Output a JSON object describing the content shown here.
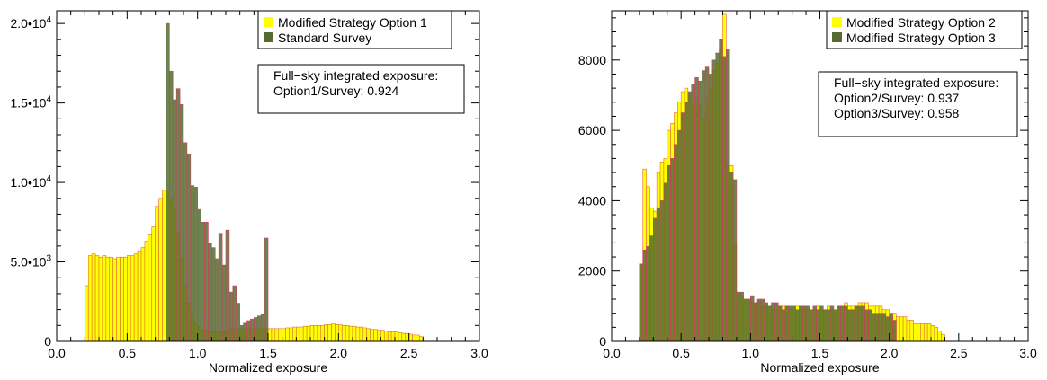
{
  "chart_data": [
    {
      "type": "bar",
      "xlabel": "Normalized exposure",
      "ylabel": "",
      "xlim": [
        0.0,
        3.0
      ],
      "ylim": [
        0,
        20800
      ],
      "bin_width": 0.025,
      "x_ticks": [
        0.0,
        0.5,
        1.0,
        1.5,
        2.0,
        2.5,
        3.0
      ],
      "x_tick_labels": [
        "0.0",
        "0.5",
        "1.0",
        "1.5",
        "2.0",
        "2.5",
        "3.0"
      ],
      "y_ticks": [
        0,
        5000,
        10000,
        15000,
        20000
      ],
      "y_tick_labels": [
        {
          "mant": "0",
          "exp": ""
        },
        {
          "mant": "5.0•10",
          "exp": "3"
        },
        {
          "mant": "1.0•10",
          "exp": "4"
        },
        {
          "mant": "1.5•10",
          "exp": "4"
        },
        {
          "mant": "2.0•10",
          "exp": "4"
        }
      ],
      "legend": {
        "position": "top-right"
      },
      "annotation": [
        "Full−sky integrated exposure:",
        "Option1/Survey: 0.924"
      ],
      "series": [
        {
          "name": "Modified Strategy Option 1",
          "color": "#ffff00",
          "edge_color": "#e07030",
          "start": 0.2,
          "values": [
            3500,
            5400,
            5500,
            5400,
            5300,
            5400,
            5300,
            5300,
            5200,
            5300,
            5300,
            5300,
            5400,
            5400,
            5500,
            5700,
            5900,
            6300,
            6700,
            7200,
            8500,
            9000,
            9500,
            9400,
            9000,
            8300,
            6800,
            5200,
            3500,
            2400,
            1600,
            1100,
            900,
            700,
            700,
            600,
            600,
            600,
            600,
            600,
            600,
            800,
            700,
            800,
            800,
            700,
            800,
            800,
            800,
            800,
            800,
            800,
            800,
            800,
            800,
            800,
            800,
            850,
            850,
            900,
            900,
            900,
            950,
            950,
            1000,
            1000,
            1000,
            1000,
            1050,
            1050,
            1100,
            1050,
            1050,
            1000,
            1000,
            950,
            950,
            900,
            900,
            850,
            800,
            750,
            750,
            700,
            700,
            650,
            600,
            600,
            600,
            550,
            500,
            500,
            450,
            400,
            400,
            300
          ]
        },
        {
          "name": "Standard Survey",
          "color": "#556b2f",
          "edge_color": "#d04060",
          "start": 0.775,
          "values": [
            20000,
            17000,
            15200,
            15900,
            14900,
            12500,
            11800,
            9800,
            9700,
            8300,
            7500,
            7500,
            6200,
            5900,
            5200,
            6800,
            4800,
            7000,
            3100,
            3500,
            2400,
            1000,
            1200,
            1300,
            1400,
            1500,
            1600,
            1700,
            6500
          ]
        }
      ]
    },
    {
      "type": "bar",
      "xlabel": "Normalized exposure",
      "ylabel": "",
      "xlim": [
        0.0,
        3.0
      ],
      "ylim": [
        0,
        9400
      ],
      "bin_width": 0.025,
      "x_ticks": [
        0.0,
        0.5,
        1.0,
        1.5,
        2.0,
        2.5,
        3.0
      ],
      "x_tick_labels": [
        "0.0",
        "0.5",
        "1.0",
        "1.5",
        "2.0",
        "2.5",
        "3.0"
      ],
      "y_ticks": [
        0,
        2000,
        4000,
        6000,
        8000
      ],
      "y_tick_labels": [
        {
          "mant": "0",
          "exp": ""
        },
        {
          "mant": "2000",
          "exp": ""
        },
        {
          "mant": "4000",
          "exp": ""
        },
        {
          "mant": "6000",
          "exp": ""
        },
        {
          "mant": "8000",
          "exp": ""
        }
      ],
      "legend": {
        "position": "top-right"
      },
      "annotation": [
        "Full−sky integrated exposure:",
        "Option2/Survey: 0.937",
        "Option3/Survey: 0.958"
      ],
      "series": [
        {
          "name": "Modified Strategy Option 2",
          "color": "#ffff00",
          "edge_color": "#e07030",
          "start": 0.2,
          "values": [
            2200,
            4900,
            4400,
            3800,
            3700,
            4800,
            5100,
            5200,
            6000,
            6200,
            6500,
            6800,
            7100,
            7200,
            7000,
            6700,
            6900,
            6700,
            6300,
            6900,
            7200,
            7700,
            7900,
            8300,
            9300,
            5000,
            5000,
            2800,
            1300,
            1300,
            1200,
            1200,
            1100,
            1100,
            1100,
            1000,
            1000,
            1000,
            900,
            900,
            1000,
            1000,
            1000,
            900,
            900,
            1000,
            1000,
            1000,
            900,
            900,
            900,
            1000,
            900,
            900,
            1000,
            900,
            900,
            1000,
            1000,
            1100,
            1000,
            1000,
            1000,
            1100,
            1100,
            1100,
            1000,
            1000,
            1000,
            1000,
            900,
            900,
            800,
            800,
            700,
            700,
            700,
            600,
            600,
            500,
            500,
            500,
            500,
            500,
            450,
            400,
            300,
            200
          ]
        },
        {
          "name": "Modified Strategy Option 3",
          "color": "#556b2f",
          "edge_color": "#d04060",
          "start": 0.2,
          "values": [
            2200,
            2600,
            2700,
            3000,
            3500,
            3800,
            4000,
            4500,
            5000,
            5200,
            5600,
            6000,
            6500,
            6800,
            7100,
            7300,
            7500,
            7400,
            7700,
            7800,
            7600,
            8000,
            8200,
            8600,
            8100,
            8300,
            4800,
            4600,
            1400,
            1400,
            1200,
            1200,
            1300,
            1100,
            1200,
            1200,
            1100,
            1000,
            1100,
            1100,
            1000,
            900,
            1000,
            1000,
            1000,
            900,
            1000,
            1000,
            1000,
            900,
            1000,
            900,
            1000,
            900,
            900,
            1000,
            900,
            1000,
            1000,
            1000,
            900,
            900,
            1000,
            1000,
            1000,
            900,
            900,
            800,
            800,
            800,
            800,
            700,
            800,
            600
          ]
        }
      ]
    }
  ]
}
